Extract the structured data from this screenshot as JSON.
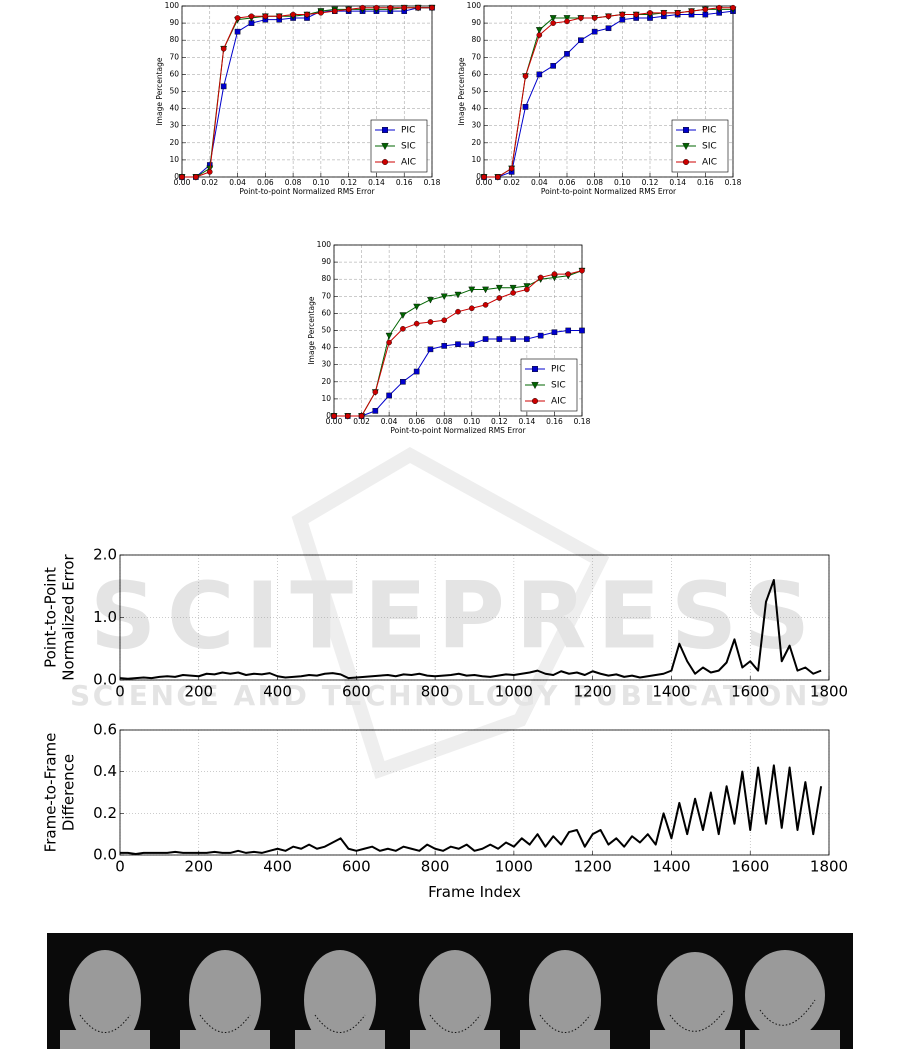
{
  "watermark": [
    "SCITEPRESS",
    "SCIENCE AND TECHNOLOGY PUBLICATIONS"
  ],
  "chart_data": [
    {
      "type": "line",
      "xlabel": "Point-to-point Normalized RMS Error",
      "ylabel": "Image Percentage",
      "x": [
        0,
        0.01,
        0.02,
        0.03,
        0.04,
        0.05,
        0.06,
        0.07,
        0.08,
        0.09,
        0.1,
        0.11,
        0.12,
        0.13,
        0.14,
        0.15,
        0.16,
        0.17,
        0.18
      ],
      "series": [
        {
          "name": "PIC",
          "color": "#0000cc",
          "marker": "square",
          "values": [
            0,
            0,
            7,
            53,
            85,
            90,
            92,
            92,
            93,
            93,
            97,
            97,
            97,
            97,
            97,
            97,
            97,
            99,
            99
          ]
        },
        {
          "name": "SIC",
          "color": "#006400",
          "marker": "triangle",
          "values": [
            0,
            0,
            5,
            75,
            92,
            93,
            94,
            94,
            94,
            95,
            97,
            98,
            98,
            98,
            98,
            98,
            99,
            99,
            99
          ]
        },
        {
          "name": "AIC",
          "color": "#cc0000",
          "marker": "circle",
          "values": [
            0,
            0,
            3,
            75,
            93,
            94,
            94,
            94,
            95,
            95,
            96,
            97,
            98,
            99,
            99,
            99,
            99,
            99,
            99
          ]
        }
      ],
      "xlim": [
        0,
        0.18
      ],
      "ylim": [
        0,
        100
      ],
      "xticks": [
        {
          "value": 0,
          "label": "0.00"
        },
        {
          "value": 0.02,
          "label": "0.02"
        },
        {
          "value": 0.04,
          "label": "0.04"
        },
        {
          "value": 0.06,
          "label": "0.06"
        },
        {
          "value": 0.08,
          "label": "0.08"
        },
        {
          "value": 0.1,
          "label": "0.10"
        },
        {
          "value": 0.12,
          "label": "0.12"
        },
        {
          "value": 0.14,
          "label": "0.14"
        },
        {
          "value": 0.16,
          "label": "0.16"
        },
        {
          "value": 0.18,
          "label": "0.18"
        }
      ],
      "yticks": [
        0,
        10,
        20,
        30,
        40,
        50,
        60,
        70,
        80,
        90,
        100
      ],
      "grid": true,
      "legend": "lower right"
    },
    {
      "type": "line",
      "xlabel": "Point-to-point Normalized RMS Error",
      "ylabel": "Image Percentage",
      "x": [
        0,
        0.01,
        0.02,
        0.03,
        0.04,
        0.05,
        0.06,
        0.07,
        0.08,
        0.09,
        0.1,
        0.11,
        0.12,
        0.13,
        0.14,
        0.15,
        0.16,
        0.17,
        0.18
      ],
      "series": [
        {
          "name": "PIC",
          "color": "#0000cc",
          "marker": "square",
          "values": [
            0,
            0,
            3,
            41,
            60,
            65,
            72,
            80,
            85,
            87,
            92,
            93,
            93,
            94,
            95,
            95,
            95,
            96,
            97
          ]
        },
        {
          "name": "SIC",
          "color": "#006400",
          "marker": "triangle",
          "values": [
            0,
            0,
            5,
            59,
            86,
            93,
            93,
            93,
            93,
            94,
            95,
            95,
            95,
            96,
            96,
            97,
            98,
            98,
            98
          ]
        },
        {
          "name": "AIC",
          "color": "#cc0000",
          "marker": "circle",
          "values": [
            0,
            0,
            5,
            59,
            83,
            90,
            91,
            93,
            93,
            94,
            95,
            95,
            96,
            96,
            96,
            97,
            98,
            99,
            99
          ]
        }
      ],
      "xlim": [
        0,
        0.18
      ],
      "ylim": [
        0,
        100
      ],
      "xticks": [
        {
          "value": 0,
          "label": "0.00"
        },
        {
          "value": 0.02,
          "label": "0.02"
        },
        {
          "value": 0.04,
          "label": "0.04"
        },
        {
          "value": 0.06,
          "label": "0.06"
        },
        {
          "value": 0.08,
          "label": "0.08"
        },
        {
          "value": 0.1,
          "label": "0.10"
        },
        {
          "value": 0.12,
          "label": "0.12"
        },
        {
          "value": 0.14,
          "label": "0.14"
        },
        {
          "value": 0.16,
          "label": "0.16"
        },
        {
          "value": 0.18,
          "label": "0.18"
        }
      ],
      "yticks": [
        0,
        10,
        20,
        30,
        40,
        50,
        60,
        70,
        80,
        90,
        100
      ],
      "grid": true,
      "legend": "lower right"
    },
    {
      "type": "line",
      "xlabel": "Point-to-point Normalized RMS Error",
      "ylabel": "Image Percentage",
      "x": [
        0,
        0.01,
        0.02,
        0.03,
        0.04,
        0.05,
        0.06,
        0.07,
        0.08,
        0.09,
        0.1,
        0.11,
        0.12,
        0.13,
        0.14,
        0.15,
        0.16,
        0.17,
        0.18
      ],
      "series": [
        {
          "name": "PIC",
          "color": "#0000cc",
          "marker": "square",
          "values": [
            0,
            0,
            0,
            3,
            12,
            20,
            26,
            39,
            41,
            42,
            42,
            45,
            45,
            45,
            45,
            47,
            49,
            50,
            50
          ]
        },
        {
          "name": "SIC",
          "color": "#006400",
          "marker": "triangle",
          "values": [
            0,
            0,
            0,
            14,
            47,
            59,
            64,
            68,
            70,
            71,
            74,
            74,
            75,
            75,
            76,
            80,
            81,
            82,
            85
          ]
        },
        {
          "name": "AIC",
          "color": "#cc0000",
          "marker": "circle",
          "values": [
            0,
            0,
            0,
            14,
            43,
            51,
            54,
            55,
            56,
            61,
            63,
            65,
            69,
            72,
            74,
            81,
            83,
            83,
            85
          ]
        }
      ],
      "xlim": [
        0,
        0.18
      ],
      "ylim": [
        0,
        100
      ],
      "xticks": [
        {
          "value": 0,
          "label": "0.00"
        },
        {
          "value": 0.02,
          "label": "0.02"
        },
        {
          "value": 0.04,
          "label": "0.04"
        },
        {
          "value": 0.06,
          "label": "0.06"
        },
        {
          "value": 0.08,
          "label": "0.08"
        },
        {
          "value": 0.1,
          "label": "0.10"
        },
        {
          "value": 0.12,
          "label": "0.12"
        },
        {
          "value": 0.14,
          "label": "0.14"
        },
        {
          "value": 0.16,
          "label": "0.16"
        },
        {
          "value": 0.18,
          "label": "0.18"
        }
      ],
      "yticks": [
        0,
        10,
        20,
        30,
        40,
        50,
        60,
        70,
        80,
        90,
        100
      ],
      "grid": true,
      "legend": "lower right"
    },
    {
      "type": "line",
      "ylabel": [
        "Point-to-Point",
        "Normalized Error"
      ],
      "color": "#000000",
      "x": [
        0,
        20,
        40,
        60,
        80,
        100,
        120,
        140,
        160,
        180,
        200,
        220,
        240,
        260,
        280,
        300,
        320,
        340,
        360,
        380,
        400,
        420,
        440,
        460,
        480,
        500,
        520,
        540,
        560,
        580,
        600,
        620,
        640,
        660,
        680,
        700,
        720,
        740,
        760,
        780,
        800,
        820,
        840,
        860,
        880,
        900,
        920,
        940,
        960,
        980,
        1000,
        1020,
        1040,
        1060,
        1080,
        1100,
        1120,
        1140,
        1160,
        1180,
        1200,
        1220,
        1240,
        1260,
        1280,
        1300,
        1320,
        1340,
        1360,
        1380,
        1400,
        1420,
        1440,
        1460,
        1480,
        1500,
        1520,
        1540,
        1560,
        1580,
        1600,
        1620,
        1640,
        1660,
        1680,
        1700,
        1720,
        1740,
        1760,
        1780
      ],
      "values": [
        0.03,
        0.02,
        0.03,
        0.04,
        0.03,
        0.05,
        0.06,
        0.05,
        0.08,
        0.07,
        0.06,
        0.1,
        0.09,
        0.12,
        0.1,
        0.12,
        0.08,
        0.1,
        0.09,
        0.11,
        0.06,
        0.04,
        0.05,
        0.06,
        0.08,
        0.07,
        0.1,
        0.11,
        0.09,
        0.03,
        0.04,
        0.05,
        0.06,
        0.07,
        0.08,
        0.06,
        0.09,
        0.08,
        0.1,
        0.07,
        0.06,
        0.07,
        0.08,
        0.1,
        0.07,
        0.08,
        0.06,
        0.05,
        0.07,
        0.09,
        0.08,
        0.1,
        0.12,
        0.15,
        0.1,
        0.08,
        0.14,
        0.1,
        0.12,
        0.08,
        0.14,
        0.1,
        0.07,
        0.09,
        0.05,
        0.07,
        0.04,
        0.06,
        0.08,
        0.1,
        0.15,
        0.58,
        0.3,
        0.1,
        0.2,
        0.12,
        0.15,
        0.28,
        0.65,
        0.2,
        0.3,
        0.15,
        1.25,
        1.6,
        0.3,
        0.55,
        0.15,
        0.2,
        0.1,
        0.15
      ],
      "xlim": [
        0,
        1800
      ],
      "ylim": [
        0,
        2
      ],
      "xticks": [
        0,
        200,
        400,
        600,
        800,
        1000,
        1200,
        1400,
        1600,
        1800
      ],
      "yticks": [
        {
          "value": 0,
          "label": "0.0"
        },
        {
          "value": 1,
          "label": "1.0"
        },
        {
          "value": 2,
          "label": "2.0"
        }
      ],
      "grid": true
    },
    {
      "type": "line",
      "xlabel": "Frame Index",
      "ylabel": [
        "Frame-to-Frame",
        "Difference"
      ],
      "color": "#000000",
      "x": [
        0,
        20,
        40,
        60,
        80,
        100,
        120,
        140,
        160,
        180,
        200,
        220,
        240,
        260,
        280,
        300,
        320,
        340,
        360,
        380,
        400,
        420,
        440,
        460,
        480,
        500,
        520,
        540,
        560,
        580,
        600,
        620,
        640,
        660,
        680,
        700,
        720,
        740,
        760,
        780,
        800,
        820,
        840,
        860,
        880,
        900,
        920,
        940,
        960,
        980,
        1000,
        1020,
        1040,
        1060,
        1080,
        1100,
        1120,
        1140,
        1160,
        1180,
        1200,
        1220,
        1240,
        1260,
        1280,
        1300,
        1320,
        1340,
        1360,
        1380,
        1400,
        1420,
        1440,
        1460,
        1480,
        1500,
        1520,
        1540,
        1560,
        1580,
        1600,
        1620,
        1640,
        1660,
        1680,
        1700,
        1720,
        1740,
        1760,
        1780
      ],
      "values": [
        0.01,
        0.01,
        0.005,
        0.01,
        0.01,
        0.01,
        0.01,
        0.015,
        0.01,
        0.01,
        0.01,
        0.01,
        0.015,
        0.01,
        0.01,
        0.02,
        0.01,
        0.015,
        0.01,
        0.02,
        0.03,
        0.02,
        0.04,
        0.03,
        0.05,
        0.03,
        0.04,
        0.06,
        0.08,
        0.03,
        0.02,
        0.03,
        0.04,
        0.02,
        0.03,
        0.02,
        0.04,
        0.03,
        0.02,
        0.05,
        0.03,
        0.02,
        0.04,
        0.03,
        0.05,
        0.02,
        0.03,
        0.05,
        0.03,
        0.06,
        0.04,
        0.08,
        0.05,
        0.1,
        0.04,
        0.09,
        0.05,
        0.11,
        0.12,
        0.04,
        0.1,
        0.12,
        0.05,
        0.08,
        0.04,
        0.09,
        0.06,
        0.1,
        0.05,
        0.2,
        0.08,
        0.25,
        0.1,
        0.27,
        0.12,
        0.3,
        0.1,
        0.33,
        0.15,
        0.4,
        0.12,
        0.42,
        0.15,
        0.43,
        0.13,
        0.42,
        0.12,
        0.35,
        0.1,
        0.33
      ],
      "xlim": [
        0,
        1800
      ],
      "ylim": [
        0,
        0.6
      ],
      "xticks": [
        0,
        200,
        400,
        600,
        800,
        1000,
        1200,
        1400,
        1600,
        1800
      ],
      "yticks": [
        {
          "value": 0,
          "label": "0.0"
        },
        0.2,
        0.4,
        0.6
      ],
      "grid": true
    }
  ]
}
